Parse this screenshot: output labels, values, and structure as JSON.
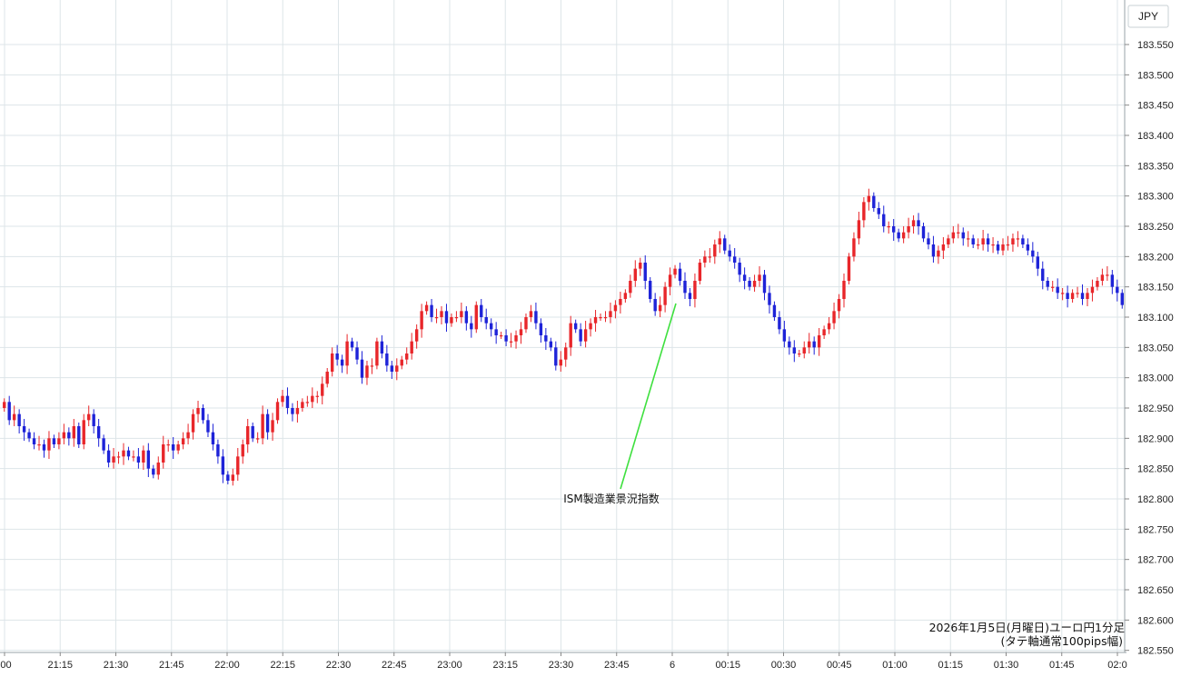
{
  "chart_data": {
    "type": "candlestick",
    "currency_label": "JPY",
    "title_line1": "2026年1月5日(月曜日)ユーロ円1分足",
    "title_line2": "(タテ軸通常100pips幅)",
    "annotation": {
      "text": "ISM製造業景況指数",
      "at_time": "23:59"
    },
    "y_ticks": [
      "183.550",
      "183.500",
      "183.450",
      "183.400",
      "183.350",
      "183.300",
      "183.250",
      "183.200",
      "183.150",
      "183.100",
      "183.050",
      "183.000",
      "182.950",
      "182.900",
      "182.850",
      "182.800",
      "182.750",
      "182.700",
      "182.650",
      "182.600",
      "182.550"
    ],
    "x_ticks": [
      ":00",
      "21:15",
      "21:30",
      "21:45",
      "22:00",
      "22:15",
      "22:30",
      "22:45",
      "23:00",
      "23:15",
      "23:30",
      "23:45",
      "6",
      "00:15",
      "00:30",
      "00:45",
      "01:00",
      "01:15",
      "01:30",
      "01:45",
      "02:0"
    ],
    "ylim": [
      182.542,
      183.58
    ],
    "colors": {
      "up": "#e8262a",
      "down": "#1e23d8",
      "annotation_line": "#3ee03e",
      "grid": "#dde5e8"
    },
    "closes": [
      182.96,
      182.93,
      182.94,
      182.92,
      182.91,
      182.9,
      182.89,
      182.89,
      182.88,
      182.9,
      182.89,
      182.9,
      182.91,
      182.9,
      182.92,
      182.89,
      182.93,
      182.94,
      182.92,
      182.9,
      182.88,
      182.86,
      182.87,
      182.87,
      182.88,
      182.87,
      182.87,
      182.86,
      182.88,
      182.85,
      182.84,
      182.86,
      182.89,
      182.89,
      182.88,
      182.89,
      182.9,
      182.91,
      182.94,
      182.95,
      182.93,
      182.91,
      182.89,
      182.87,
      182.84,
      182.83,
      182.84,
      182.87,
      182.89,
      182.92,
      182.9,
      182.9,
      182.94,
      182.91,
      182.93,
      182.96,
      182.97,
      182.95,
      182.94,
      182.95,
      182.96,
      182.96,
      182.97,
      182.97,
      182.99,
      183.01,
      183.04,
      183.03,
      183.02,
      183.06,
      183.05,
      183.03,
      183.0,
      183.02,
      183.02,
      183.06,
      183.04,
      183.02,
      183.01,
      183.02,
      183.03,
      183.04,
      183.06,
      183.08,
      183.11,
      183.12,
      183.1,
      183.1,
      183.11,
      183.09,
      183.1,
      183.1,
      183.11,
      183.09,
      183.08,
      183.12,
      183.1,
      183.09,
      183.08,
      183.07,
      183.07,
      183.06,
      183.06,
      183.07,
      183.08,
      183.1,
      183.11,
      183.09,
      183.07,
      183.06,
      183.05,
      183.02,
      183.03,
      183.05,
      183.09,
      183.08,
      183.06,
      183.08,
      183.09,
      183.1,
      183.1,
      183.1,
      183.11,
      183.12,
      183.13,
      183.14,
      183.16,
      183.18,
      183.19,
      183.16,
      183.13,
      183.11,
      183.12,
      183.15,
      183.17,
      183.18,
      183.16,
      183.14,
      183.13,
      183.16,
      183.19,
      183.2,
      183.2,
      183.22,
      183.23,
      183.21,
      183.2,
      183.19,
      183.17,
      183.16,
      183.15,
      183.16,
      183.17,
      183.14,
      183.12,
      183.1,
      183.08,
      183.06,
      183.05,
      183.04,
      183.04,
      183.05,
      183.06,
      183.05,
      183.07,
      183.08,
      183.09,
      183.11,
      183.13,
      183.16,
      183.2,
      183.23,
      183.26,
      183.29,
      183.3,
      183.28,
      183.27,
      183.25,
      183.25,
      183.24,
      183.23,
      183.24,
      183.25,
      183.26,
      183.25,
      183.23,
      183.22,
      183.2,
      183.21,
      183.22,
      183.23,
      183.24,
      183.24,
      183.23,
      183.23,
      183.22,
      183.22,
      183.23,
      183.22,
      183.22,
      183.21,
      183.22,
      183.22,
      183.23,
      183.23,
      183.22,
      183.21,
      183.2,
      183.18,
      183.16,
      183.15,
      183.15,
      183.14,
      183.14,
      183.13,
      183.14,
      183.14,
      183.13,
      183.14,
      183.15,
      183.16,
      183.17,
      183.17,
      183.15,
      183.14,
      183.12
    ]
  }
}
